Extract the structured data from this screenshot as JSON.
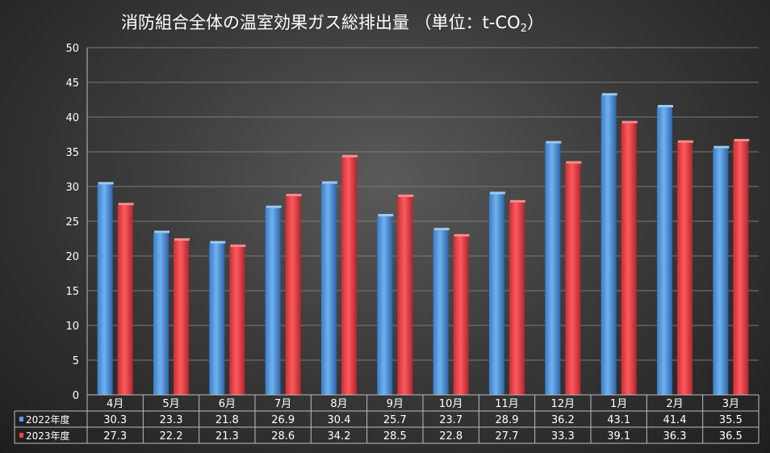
{
  "chart_data": {
    "type": "bar",
    "title": "消防組合全体の温室効果ガス総排出量 （単位：t-CO",
    "title_subscript": "2",
    "title_suffix": "）",
    "categories": [
      "4月",
      "5月",
      "6月",
      "7月",
      "8月",
      "9月",
      "10月",
      "11月",
      "12月",
      "1月",
      "2月",
      "3月"
    ],
    "series": [
      {
        "name": "2022年度",
        "values": [
          30.3,
          23.3,
          21.8,
          26.9,
          30.4,
          25.7,
          23.7,
          28.9,
          36.2,
          43.1,
          41.4,
          35.5
        ],
        "color": "#5aa0e6"
      },
      {
        "name": "2023年度",
        "values": [
          27.3,
          22.2,
          21.3,
          28.6,
          34.2,
          28.5,
          22.8,
          27.7,
          33.3,
          39.1,
          36.3,
          36.5
        ],
        "color": "#f0454a"
      }
    ],
    "ylim": [
      0,
      50
    ],
    "yticks": [
      0,
      5,
      10,
      15,
      20,
      25,
      30,
      35,
      40,
      45,
      50
    ],
    "grid": true,
    "legend": "data-table"
  }
}
